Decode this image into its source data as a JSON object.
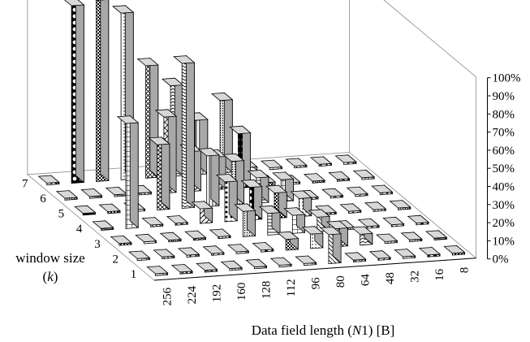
{
  "chart_data": {
    "type": "bar3d",
    "title": "",
    "xlabel": "Data field length (N1) [B]",
    "xlabel_parts": [
      "Data field length (",
      "N",
      "1) [B]"
    ],
    "ylabel_parts": [
      "window size",
      "(",
      "k",
      ")"
    ],
    "zlabel": "",
    "categories": [
      256,
      224,
      192,
      160,
      128,
      112,
      96,
      80,
      64,
      48,
      32,
      16,
      8
    ],
    "category_labels": [
      "256",
      "224",
      "192",
      "160",
      "128",
      "112",
      "96",
      "80",
      "64",
      "48",
      "32",
      "16",
      "8"
    ],
    "window_sizes": [
      1,
      2,
      3,
      4,
      5,
      6,
      7
    ],
    "window_size_labels": [
      "1",
      "2",
      "3",
      "4",
      "5",
      "6",
      "7"
    ],
    "zlim": [
      0,
      100
    ],
    "z_ticks": [
      "0%",
      "10%",
      "20%",
      "30%",
      "40%",
      "50%",
      "60%",
      "70%",
      "80%",
      "90%",
      "100%"
    ],
    "value_unit": "%",
    "grid": false,
    "legend": "none",
    "bar_fill_base": "#ffffff",
    "bar_side_base": "#a8a8a8",
    "bar_top_base": "#d8d8d8",
    "frame_color": "#8a8a8a",
    "series": [
      {
        "window_size": 1,
        "values": [
          1,
          1,
          1,
          1,
          1,
          1,
          1,
          16,
          1,
          1,
          1,
          1,
          1
        ]
      },
      {
        "window_size": 2,
        "values": [
          1,
          1,
          1,
          1,
          1,
          1,
          6,
          8,
          10,
          6,
          1,
          1,
          1
        ]
      },
      {
        "window_size": 3,
        "values": [
          1,
          1,
          1,
          1,
          1,
          14,
          12,
          10,
          8,
          1,
          1,
          1,
          1
        ]
      },
      {
        "window_size": 4,
        "values": [
          1,
          58,
          1,
          1,
          8,
          22,
          18,
          14,
          10,
          1,
          1,
          1,
          1
        ]
      },
      {
        "window_size": 5,
        "values": [
          1,
          1,
          1,
          36,
          80,
          28,
          24,
          14,
          12,
          1,
          1,
          1,
          1
        ]
      },
      {
        "window_size": 6,
        "values": [
          1,
          1,
          1,
          1,
          42,
          22,
          18,
          30,
          2,
          1,
          1,
          1,
          1
        ]
      },
      {
        "window_size": 7,
        "values": [
          1,
          98,
          100,
          92,
          62,
          50,
          30,
          40,
          2,
          1,
          1,
          1,
          1
        ]
      }
    ]
  }
}
